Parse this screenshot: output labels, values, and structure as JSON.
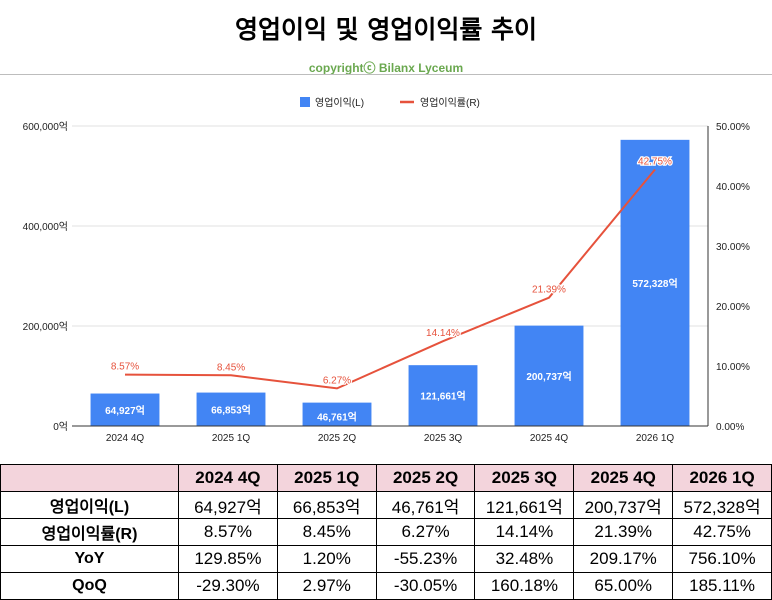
{
  "title": "영업이익 및 영업이익률 추이",
  "copyright": "copyrightⓒ Bilanx Lyceum",
  "chart_data": {
    "type": "bar",
    "categories": [
      "2024 4Q",
      "2025 1Q",
      "2025 2Q",
      "2025 3Q",
      "2025 4Q",
      "2026 1Q"
    ],
    "series": [
      {
        "name": "영업이익(L)",
        "type": "bar",
        "axis": "left",
        "color": "#4285f4",
        "values": [
          64927,
          66853,
          46761,
          121661,
          200737,
          572328
        ],
        "labels": [
          "64,927억",
          "66,853억",
          "46,761억",
          "121,661억",
          "200,737억",
          "572,328억"
        ]
      },
      {
        "name": "영업이익률(R)",
        "type": "line",
        "axis": "right",
        "color": "#e6523c",
        "values": [
          8.57,
          8.45,
          6.27,
          14.14,
          21.39,
          42.75
        ],
        "labels": [
          "8.57%",
          "8.45%",
          "6.27%",
          "14.14%",
          "21.39%",
          "42.75%"
        ]
      }
    ],
    "y_left": {
      "range": [
        0,
        600000
      ],
      "ticks": [
        0,
        200000,
        400000,
        600000
      ],
      "tick_labels": [
        "0억",
        "200,000억",
        "400,000억",
        "600,000억"
      ]
    },
    "y_right": {
      "range": [
        0,
        50
      ],
      "ticks": [
        0,
        10,
        20,
        30,
        40,
        50
      ],
      "tick_labels": [
        "0.00%",
        "10.00%",
        "20.00%",
        "30.00%",
        "40.00%",
        "50.00%"
      ]
    },
    "grid": true,
    "legend": "top-center"
  },
  "table": {
    "headers": [
      "2024 4Q",
      "2025 1Q",
      "2025 2Q",
      "2025 3Q",
      "2025 4Q",
      "2026 1Q"
    ],
    "rows": [
      {
        "label": "영업이익(L)",
        "values": [
          "64,927억",
          "66,853억",
          "46,761억",
          "121,661억",
          "200,737억",
          "572,328억"
        ]
      },
      {
        "label": "영업이익률(R)",
        "values": [
          "8.57%",
          "8.45%",
          "6.27%",
          "14.14%",
          "21.39%",
          "42.75%"
        ]
      },
      {
        "label": "YoY",
        "values": [
          "129.85%",
          "1.20%",
          "-55.23%",
          "32.48%",
          "209.17%",
          "756.10%"
        ]
      },
      {
        "label": "QoQ",
        "values": [
          "-29.30%",
          "2.97%",
          "-30.05%",
          "160.18%",
          "65.00%",
          "185.11%"
        ]
      }
    ]
  }
}
